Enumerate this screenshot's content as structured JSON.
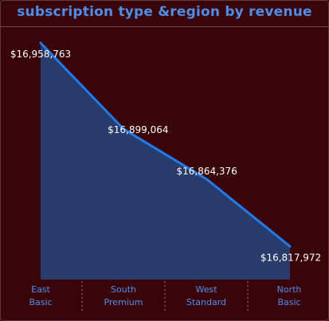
{
  "title": "subscription type &region by revenue",
  "chart_data": {
    "type": "area",
    "title": "subscription type &region by revenue",
    "categories": [
      [
        "East",
        "Basic"
      ],
      [
        "South",
        "Premium"
      ],
      [
        "West",
        "Standard"
      ],
      [
        "North",
        "Basic"
      ]
    ],
    "values": [
      16958763,
      16899064,
      16864376,
      16817972
    ],
    "data_labels": [
      "$16,958,763",
      "$16,899,064",
      "$16,864,376",
      "$16,817,972"
    ],
    "ylim": [
      16795000,
      16962000
    ],
    "grid": false,
    "legend": "none"
  },
  "colors": {
    "background": "#3a0508",
    "line": "#1f7bf0",
    "fill": "#293b6a",
    "title": "#4f8de8",
    "axis_label": "#4f8de8",
    "data_label": "#ffffff",
    "separator": "#9a7a7a"
  }
}
